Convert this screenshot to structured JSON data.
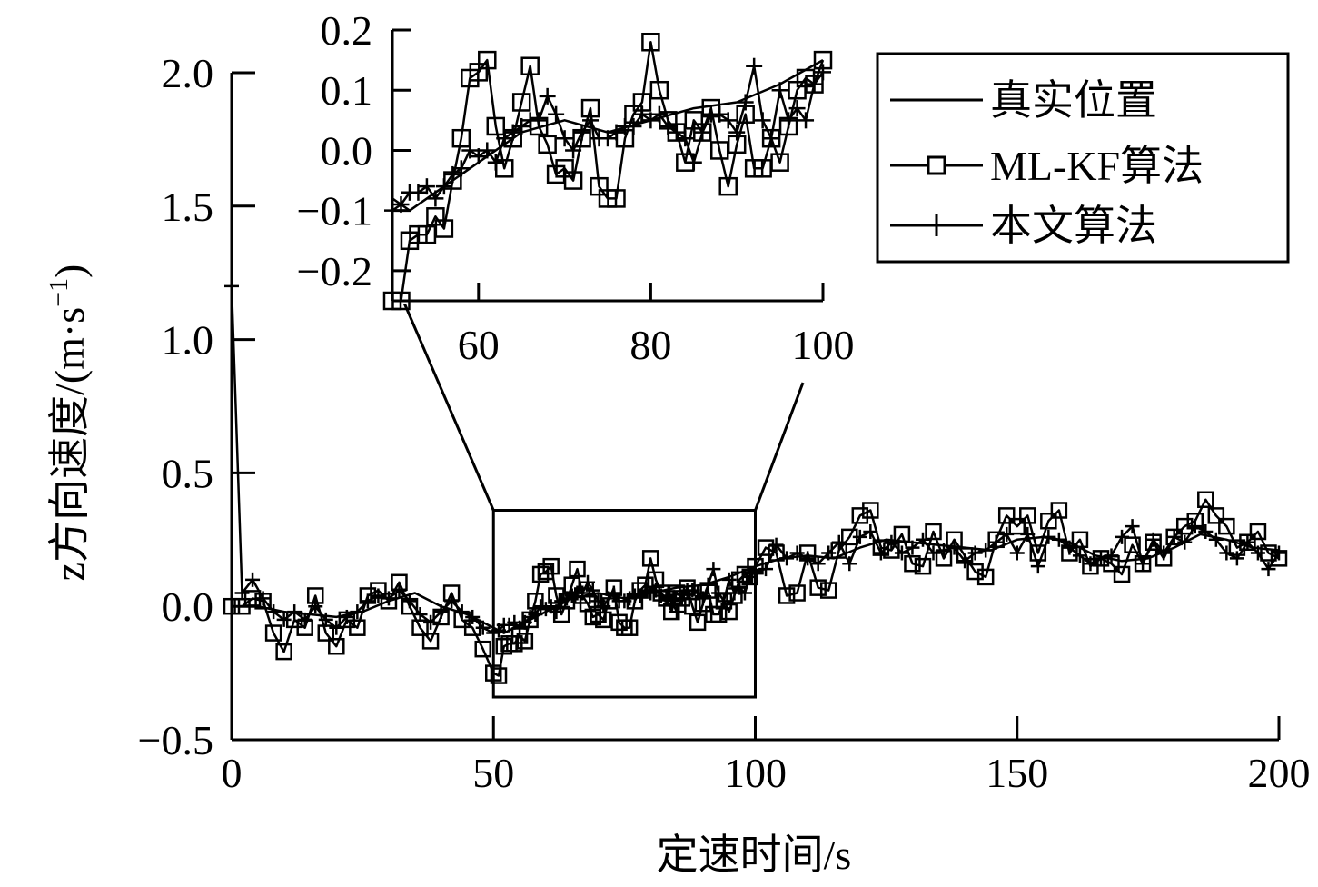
{
  "chart_data": {
    "type": "line",
    "xlabel": "定速时间/s",
    "ylabel": "z方向速度/(m·s",
    "ylabel_sup": "−1",
    "ylabel_close": ")",
    "xlim": [
      0,
      200
    ],
    "ylim": [
      -0.5,
      2.0
    ],
    "xticks": [
      0,
      50,
      100,
      150,
      200
    ],
    "xtick_labels": [
      "0",
      "50",
      "100",
      "150",
      "200"
    ],
    "yticks": [
      -0.5,
      0.0,
      0.5,
      1.0,
      1.5,
      2.0
    ],
    "ytick_labels": [
      "−0.5",
      "0.0",
      "0.5",
      "1.0",
      "1.5",
      "2.0"
    ],
    "grid": false,
    "legend_position": "top-right",
    "legend": [
      "真实位置",
      "ML-KF算法",
      "本文算法"
    ],
    "series": [
      {
        "name": "真实位置",
        "marker": "none",
        "x": [
          0,
          2,
          5,
          10,
          15,
          20,
          25,
          30,
          35,
          40,
          45,
          50,
          52,
          55,
          60,
          65,
          70,
          75,
          80,
          85,
          90,
          95,
          100,
          105,
          110,
          115,
          120,
          125,
          130,
          135,
          140,
          145,
          150,
          155,
          160,
          165,
          170,
          175,
          180,
          185,
          190,
          195,
          200
        ],
        "y": [
          0.0,
          0.0,
          0.0,
          -0.02,
          -0.03,
          -0.04,
          -0.02,
          0.02,
          0.05,
          0.0,
          -0.03,
          -0.08,
          -0.1,
          -0.07,
          -0.02,
          0.03,
          0.05,
          0.03,
          0.05,
          0.07,
          0.08,
          0.11,
          0.15,
          0.18,
          0.19,
          0.18,
          0.22,
          0.25,
          0.24,
          0.23,
          0.22,
          0.21,
          0.25,
          0.26,
          0.24,
          0.19,
          0.17,
          0.18,
          0.22,
          0.27,
          0.25,
          0.22,
          0.21
        ]
      },
      {
        "name": "ML-KF算法",
        "marker": "square",
        "x": [
          0,
          2,
          4,
          6,
          8,
          10,
          12,
          14,
          16,
          18,
          20,
          22,
          24,
          26,
          28,
          30,
          32,
          34,
          36,
          38,
          40,
          42,
          44,
          46,
          48,
          50,
          51,
          52,
          53,
          54,
          55,
          56,
          57,
          58,
          59,
          60,
          61,
          62,
          63,
          64,
          65,
          66,
          67,
          68,
          69,
          70,
          71,
          72,
          73,
          74,
          75,
          76,
          77,
          78,
          79,
          80,
          81,
          82,
          83,
          84,
          85,
          86,
          87,
          88,
          89,
          90,
          91,
          92,
          93,
          94,
          95,
          96,
          97,
          98,
          99,
          100,
          102,
          104,
          106,
          108,
          110,
          112,
          114,
          116,
          118,
          120,
          122,
          124,
          126,
          128,
          130,
          132,
          134,
          136,
          138,
          140,
          142,
          144,
          146,
          148,
          150,
          152,
          154,
          156,
          158,
          160,
          162,
          164,
          166,
          168,
          170,
          172,
          174,
          176,
          178,
          180,
          182,
          184,
          186,
          188,
          190,
          192,
          194,
          196,
          198,
          200
        ],
        "y": [
          0.0,
          0.0,
          0.03,
          0.02,
          -0.1,
          -0.17,
          -0.05,
          -0.08,
          0.04,
          -0.1,
          -0.15,
          -0.05,
          -0.08,
          0.04,
          0.06,
          0.02,
          0.09,
          0.0,
          -0.08,
          -0.13,
          -0.04,
          0.05,
          -0.05,
          -0.08,
          -0.16,
          -0.25,
          -0.26,
          -0.15,
          -0.14,
          -0.14,
          -0.11,
          -0.13,
          -0.05,
          0.02,
          0.12,
          0.13,
          0.15,
          0.04,
          -0.03,
          0.02,
          0.08,
          0.14,
          0.04,
          0.01,
          -0.04,
          -0.03,
          -0.05,
          0.02,
          0.07,
          -0.06,
          -0.08,
          -0.08,
          0.02,
          0.06,
          0.08,
          0.18,
          0.1,
          0.05,
          0.03,
          -0.02,
          0.05,
          0.03,
          0.07,
          0.0,
          -0.06,
          0.01,
          0.06,
          -0.03,
          -0.03,
          0.02,
          -0.02,
          0.04,
          0.1,
          0.12,
          0.11,
          0.15,
          0.22,
          0.2,
          0.04,
          0.05,
          0.2,
          0.07,
          0.06,
          0.21,
          0.26,
          0.34,
          0.36,
          0.22,
          0.21,
          0.27,
          0.16,
          0.15,
          0.28,
          0.18,
          0.25,
          0.19,
          0.13,
          0.11,
          0.25,
          0.34,
          0.3,
          0.34,
          0.2,
          0.32,
          0.36,
          0.2,
          0.25,
          0.15,
          0.18,
          0.16,
          0.12,
          0.23,
          0.16,
          0.24,
          0.18,
          0.26,
          0.3,
          0.32,
          0.4,
          0.34,
          0.3,
          0.22,
          0.24,
          0.28,
          0.2,
          0.18
        ]
      },
      {
        "name": "本文算法",
        "marker": "plus",
        "x": [
          0,
          2,
          4,
          6,
          8,
          10,
          12,
          14,
          16,
          18,
          20,
          22,
          24,
          26,
          28,
          30,
          32,
          34,
          36,
          38,
          40,
          42,
          44,
          46,
          48,
          50,
          51,
          52,
          53,
          54,
          55,
          56,
          57,
          58,
          59,
          60,
          61,
          62,
          63,
          64,
          65,
          66,
          67,
          68,
          69,
          70,
          71,
          72,
          73,
          74,
          75,
          76,
          77,
          78,
          79,
          80,
          81,
          82,
          83,
          84,
          85,
          86,
          87,
          88,
          89,
          90,
          91,
          92,
          93,
          94,
          95,
          96,
          97,
          98,
          99,
          100,
          102,
          104,
          106,
          108,
          110,
          112,
          114,
          116,
          118,
          120,
          122,
          124,
          126,
          128,
          130,
          132,
          134,
          136,
          138,
          140,
          142,
          144,
          146,
          148,
          150,
          152,
          154,
          156,
          158,
          160,
          162,
          164,
          166,
          168,
          170,
          172,
          174,
          176,
          178,
          180,
          182,
          184,
          186,
          188,
          190,
          192,
          194,
          196,
          198,
          200
        ],
        "y": [
          1.2,
          0.05,
          0.1,
          0.03,
          -0.02,
          -0.05,
          -0.02,
          -0.05,
          0.0,
          -0.05,
          -0.08,
          -0.04,
          -0.02,
          0.02,
          0.04,
          0.03,
          0.06,
          0.02,
          -0.03,
          -0.06,
          -0.02,
          0.02,
          -0.02,
          -0.04,
          -0.08,
          -0.1,
          -0.09,
          -0.07,
          -0.07,
          -0.06,
          -0.08,
          -0.06,
          -0.04,
          -0.03,
          0.0,
          -0.01,
          0.0,
          -0.02,
          0.02,
          0.03,
          0.04,
          0.05,
          0.05,
          0.09,
          0.06,
          0.02,
          0.0,
          0.03,
          0.05,
          0.02,
          0.02,
          0.03,
          0.04,
          0.04,
          0.06,
          0.05,
          0.06,
          0.04,
          0.03,
          0.02,
          -0.02,
          0.03,
          0.06,
          0.06,
          0.05,
          0.03,
          0.08,
          0.14,
          0.05,
          0.02,
          0.1,
          0.05,
          0.07,
          0.05,
          0.11,
          0.13,
          0.14,
          0.23,
          0.18,
          0.2,
          0.18,
          0.16,
          0.2,
          0.24,
          0.16,
          0.26,
          0.28,
          0.2,
          0.24,
          0.2,
          0.22,
          0.25,
          0.2,
          0.21,
          0.22,
          0.17,
          0.2,
          0.21,
          0.24,
          0.27,
          0.2,
          0.27,
          0.15,
          0.26,
          0.25,
          0.22,
          0.19,
          0.16,
          0.18,
          0.19,
          0.26,
          0.3,
          0.16,
          0.25,
          0.2,
          0.26,
          0.24,
          0.3,
          0.28,
          0.25,
          0.2,
          0.18,
          0.24,
          0.2,
          0.14,
          0.2
        ]
      }
    ],
    "zoom_box": {
      "xlim": [
        50,
        100
      ],
      "ylim": [
        -0.34,
        0.36
      ]
    },
    "inset": {
      "xlim": [
        50,
        100
      ],
      "ylim": [
        -0.25,
        0.2
      ],
      "xticks": [
        60,
        80,
        100
      ],
      "xtick_labels": [
        "60",
        "80",
        "100"
      ],
      "yticks": [
        -0.2,
        -0.1,
        0.0,
        0.1,
        0.2
      ],
      "ytick_labels": [
        "−0.2",
        "−0.1",
        "0.0",
        "0.1",
        "0.2"
      ]
    }
  }
}
